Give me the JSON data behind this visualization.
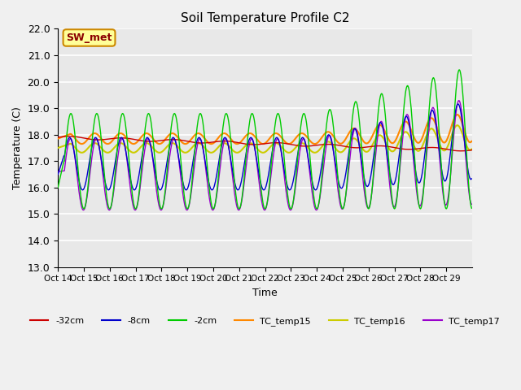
{
  "title": "Soil Temperature Profile C2",
  "xlabel": "Time",
  "ylabel": "Temperature (C)",
  "ylim": [
    13.0,
    22.0
  ],
  "yticks": [
    13.0,
    14.0,
    15.0,
    16.0,
    17.0,
    18.0,
    19.0,
    20.0,
    21.0,
    22.0
  ],
  "xtick_labels": [
    "Oct 14",
    "Oct 15",
    "Oct 16",
    "Oct 17",
    "Oct 18",
    "Oct 19",
    "Oct 20",
    "Oct 21",
    "Oct 22",
    "Oct 23",
    "Oct 24",
    "Oct 25",
    "Oct 26",
    "Oct 27",
    "Oct 28",
    "Oct 29"
  ],
  "colors": {
    "neg32cm": "#cc0000",
    "neg8cm": "#0000cc",
    "neg2cm": "#00cc00",
    "TC_temp15": "#ff8800",
    "TC_temp16": "#cccc00",
    "TC_temp17": "#9900cc"
  },
  "legend_label_box": "SW_met",
  "plot_bg": "#e8e8e8",
  "fig_bg": "#f0f0f0"
}
